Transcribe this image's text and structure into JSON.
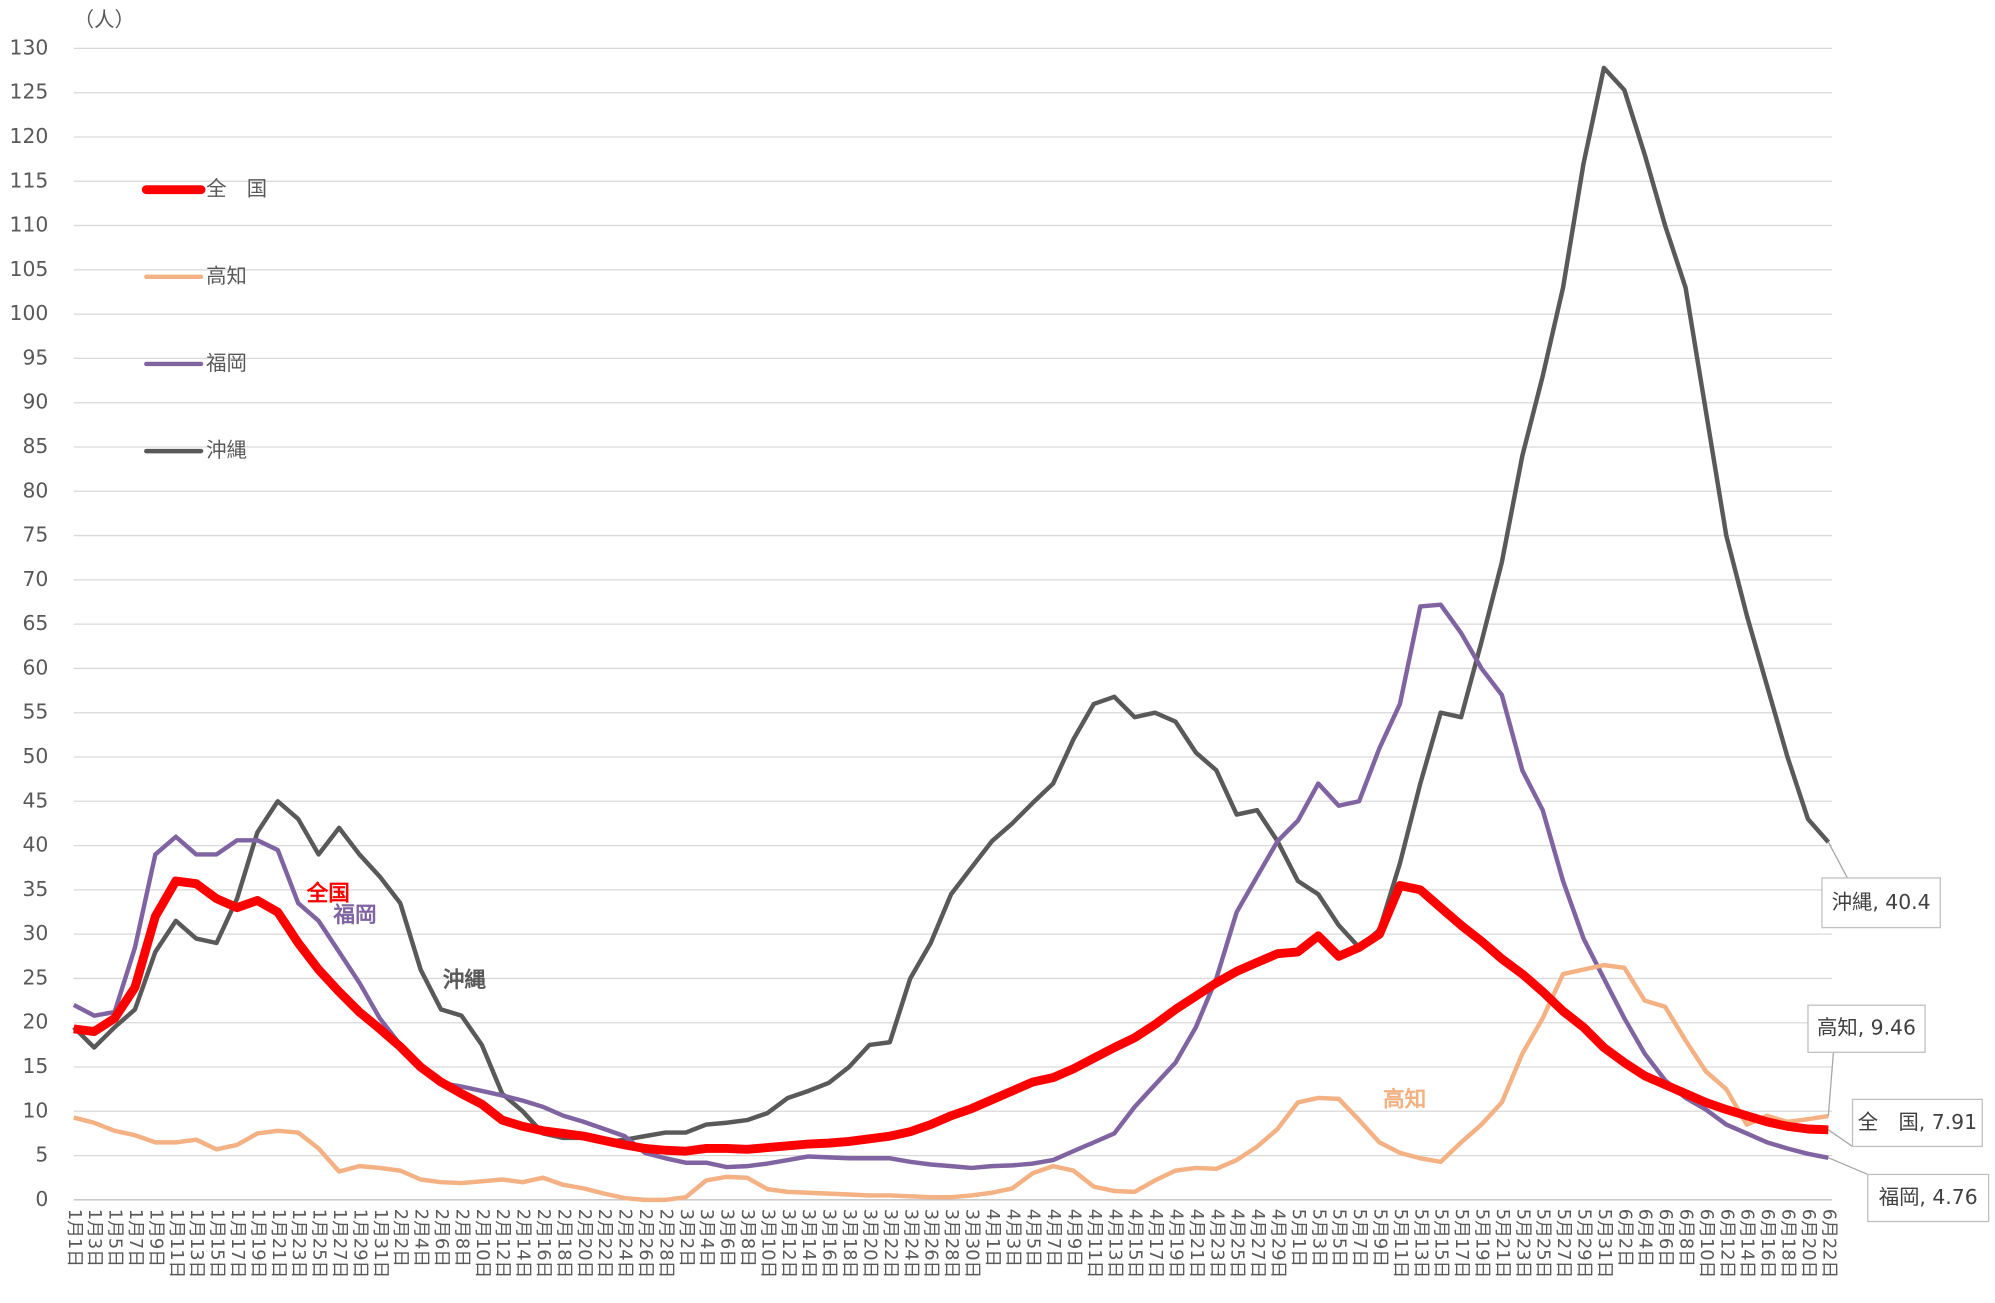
{
  "chart_data": {
    "type": "line",
    "unit_label": "（人）",
    "categories": [
      "1月1日",
      "1月3日",
      "1月5日",
      "1月7日",
      "1月9日",
      "1月11日",
      "1月13日",
      "1月15日",
      "1月17日",
      "1月19日",
      "1月21日",
      "1月23日",
      "1月25日",
      "1月27日",
      "1月29日",
      "1月31日",
      "2月2日",
      "2月4日",
      "2月6日",
      "2月8日",
      "2月10日",
      "2月12日",
      "2月14日",
      "2月16日",
      "2月18日",
      "2月20日",
      "2月22日",
      "2月24日",
      "2月26日",
      "2月28日",
      "3月2日",
      "3月4日",
      "3月6日",
      "3月8日",
      "3月10日",
      "3月12日",
      "3月14日",
      "3月16日",
      "3月18日",
      "3月20日",
      "3月22日",
      "3月24日",
      "3月26日",
      "3月28日",
      "3月30日",
      "4月1日",
      "4月3日",
      "4月5日",
      "4月7日",
      "4月9日",
      "4月11日",
      "4月13日",
      "4月15日",
      "4月17日",
      "4月19日",
      "4月21日",
      "4月23日",
      "4月25日",
      "4月27日",
      "4月29日",
      "5月1日",
      "5月3日",
      "5月5日",
      "5月7日",
      "5月9日",
      "5月11日",
      "5月13日",
      "5月15日",
      "5月17日",
      "5月19日",
      "5月21日",
      "5月23日",
      "5月25日",
      "5月27日",
      "5月29日",
      "5月31日",
      "6月2日",
      "6月4日",
      "6月6日",
      "6月8日",
      "6月10日",
      "6月12日",
      "6月14日",
      "6月16日",
      "6月18日",
      "6月20日",
      "6月22日"
    ],
    "series": [
      {
        "name": "全　国",
        "color": "#ff0000",
        "label": "全国",
        "end_label": "全　国, 7.91",
        "values": [
          19.3,
          19,
          20.5,
          24,
          32,
          36,
          35.7,
          34,
          33,
          33.8,
          32.5,
          29,
          26,
          23.5,
          21.2,
          19.3,
          17.3,
          15,
          13.3,
          12,
          10.8,
          9,
          8.3,
          7.8,
          7.5,
          7.2,
          6.7,
          6.2,
          5.8,
          5.6,
          5.5,
          5.8,
          5.8,
          5.7,
          5.9,
          6.1,
          6.3,
          6.4,
          6.6,
          6.9,
          7.2,
          7.7,
          8.5,
          9.5,
          10.3,
          11.3,
          12.3,
          13.3,
          13.8,
          14.8,
          16,
          17.2,
          18.3,
          19.8,
          21.5,
          23,
          24.5,
          25.8,
          26.8,
          27.8,
          28,
          29.8,
          27.5,
          28.5,
          30,
          35.5,
          35,
          33,
          31,
          29.2,
          27.2,
          25.5,
          23.5,
          21.3,
          19.5,
          17.2,
          15.5,
          14,
          13,
          12,
          11,
          10.2,
          9.5,
          8.8,
          8.3,
          8,
          7.91
        ]
      },
      {
        "name": "高知",
        "color": "#f4b183",
        "label": "高知",
        "end_label": "高知, 9.46",
        "values": [
          9.3,
          8.7,
          7.8,
          7.3,
          6.5,
          6.5,
          6.8,
          5.7,
          6.2,
          7.5,
          7.8,
          7.6,
          5.8,
          3.2,
          3.8,
          3.6,
          3.3,
          2.3,
          2,
          1.9,
          2.1,
          2.3,
          2,
          2.5,
          1.7,
          1.3,
          0.7,
          0.2,
          0,
          0,
          0.3,
          2.2,
          2.6,
          2.5,
          1.2,
          0.9,
          0.8,
          0.7,
          0.6,
          0.5,
          0.5,
          0.4,
          0.3,
          0.3,
          0.5,
          0.8,
          1.3,
          3,
          3.8,
          3.3,
          1.5,
          1,
          0.9,
          2.2,
          3.3,
          3.6,
          3.5,
          4.5,
          6,
          8,
          11,
          11.5,
          11.4,
          9,
          6.5,
          5.3,
          4.7,
          4.3,
          6.5,
          8.5,
          11,
          16.5,
          20.5,
          25.5,
          26,
          26.5,
          26.2,
          22.5,
          21.8,
          18,
          14.5,
          12.5,
          8.5,
          9.5,
          8.8,
          9.1,
          9.46
        ]
      },
      {
        "name": "福岡",
        "color": "#8064a2",
        "label": "福岡",
        "end_label": "福岡, 4.76",
        "values": [
          22,
          20.8,
          21.2,
          28.5,
          39,
          41,
          39,
          39,
          40.6,
          40.6,
          39.5,
          33.5,
          31.5,
          28,
          24.5,
          20.5,
          17.5,
          15,
          13.2,
          12.8,
          12.3,
          11.8,
          11.2,
          10.5,
          9.5,
          8.8,
          8,
          7.2,
          5.3,
          4.7,
          4.2,
          4.2,
          3.7,
          3.8,
          4.1,
          4.5,
          4.9,
          4.8,
          4.7,
          4.7,
          4.7,
          4.3,
          4,
          3.8,
          3.6,
          3.8,
          3.9,
          4.1,
          4.5,
          5.5,
          6.5,
          7.5,
          10.5,
          13,
          15.5,
          19.5,
          25,
          32.5,
          36.5,
          40.5,
          42.8,
          47,
          44.5,
          45,
          51,
          56,
          67,
          67.2,
          64,
          60,
          57,
          48.5,
          44,
          36,
          29.5,
          25,
          20.5,
          16.5,
          13.5,
          11.5,
          10.2,
          8.5,
          7.5,
          6.5,
          5.8,
          5.2,
          4.76
        ]
      },
      {
        "name": "沖縄",
        "color": "#595959",
        "label": "沖縄",
        "end_label": "沖縄, 40.4",
        "values": [
          19.5,
          17.2,
          19.5,
          21.5,
          28,
          31.5,
          29.5,
          29,
          34,
          41.5,
          45,
          43,
          39,
          42,
          39,
          36.5,
          33.5,
          26,
          21.5,
          20.8,
          17.5,
          12,
          10,
          7.5,
          7,
          7,
          6.5,
          6.8,
          7.2,
          7.6,
          7.6,
          8.5,
          8.7,
          9,
          9.8,
          11.5,
          12.3,
          13.2,
          15,
          17.5,
          17.8,
          25,
          29,
          34.5,
          37.5,
          40.5,
          42.5,
          44.8,
          47,
          52,
          56,
          56.8,
          54.5,
          55,
          54,
          50.5,
          48.5,
          43.5,
          44,
          40.5,
          36,
          34.5,
          31,
          28.5,
          30.5,
          38,
          47,
          55,
          54.5,
          63,
          72,
          84,
          93,
          103,
          117,
          127.8,
          125.3,
          118,
          110,
          103,
          89,
          75,
          66,
          58,
          50,
          43,
          40.4
        ]
      }
    ],
    "ylim": [
      0,
      130
    ],
    "yticks": [
      0,
      5,
      10,
      15,
      20,
      25,
      30,
      35,
      40,
      45,
      50,
      55,
      60,
      65,
      70,
      75,
      80,
      85,
      90,
      95,
      100,
      105,
      110,
      115,
      120,
      125,
      130
    ],
    "grid": true,
    "legend": "left"
  }
}
